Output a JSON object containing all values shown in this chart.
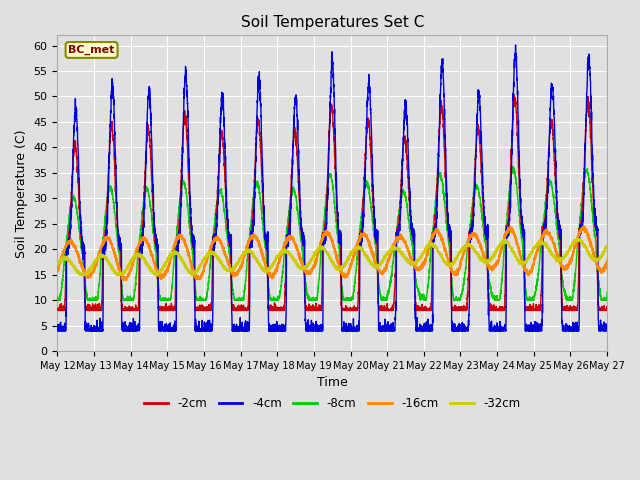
{
  "title": "Soil Temperatures Set C",
  "xlabel": "Time",
  "ylabel": "Soil Temperature (C)",
  "ylim": [
    0,
    62
  ],
  "yticks": [
    0,
    5,
    10,
    15,
    20,
    25,
    30,
    35,
    40,
    45,
    50,
    55,
    60
  ],
  "date_labels": [
    "May 12",
    "May 13",
    "May 14",
    "May 15",
    "May 16",
    "May 17",
    "May 18",
    "May 19",
    "May 20",
    "May 21",
    "May 22",
    "May 23",
    "May 24",
    "May 25",
    "May 26",
    "May 27"
  ],
  "fig_color": "#e0e0e0",
  "plot_bg_color": "#e0e0e0",
  "line_colors": {
    "-2cm": "#cc0000",
    "-4cm": "#0000dd",
    "-8cm": "#00cc00",
    "-16cm": "#ff8800",
    "-32cm": "#cccc00"
  },
  "legend_label": "BC_met",
  "legend_text_color": "#880000",
  "legend_bg": "#ffffcc",
  "legend_border": "#888800"
}
